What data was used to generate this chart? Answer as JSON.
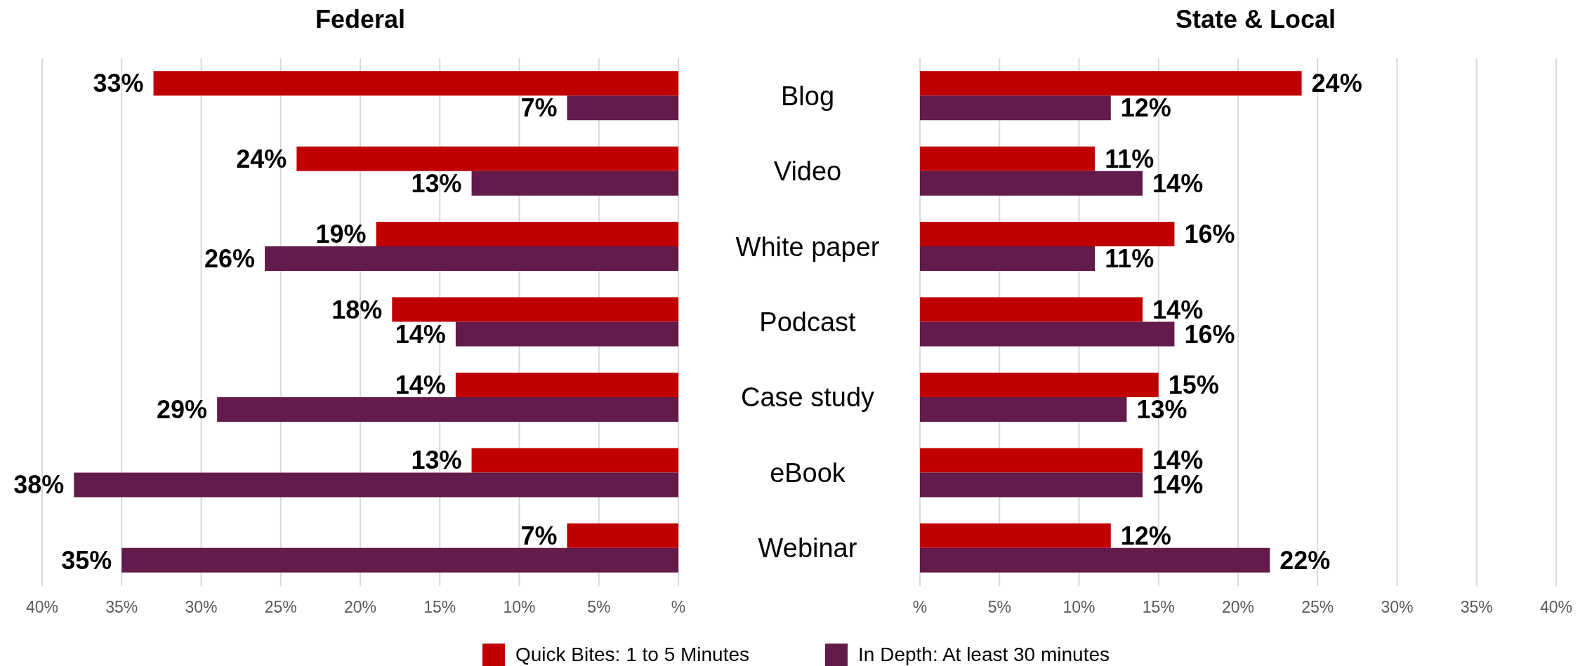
{
  "chart_data": [
    {
      "type": "bar",
      "orientation": "horizontal",
      "title": "Federal",
      "categories": [
        "Blog",
        "Video",
        "White paper",
        "Podcast",
        "Case study",
        "eBook",
        "Webinar"
      ],
      "series": [
        {
          "name": "Quick Bites: 1 to 5 Minutes",
          "color": "#c00000",
          "values": [
            33,
            24,
            19,
            18,
            14,
            13,
            7
          ],
          "value_labels": [
            "33%",
            "24%",
            "19%",
            "18%",
            "14%",
            "13%",
            "7%"
          ]
        },
        {
          "name": "In Depth: At least 30 minutes",
          "color": "#621b4b",
          "values": [
            7,
            13,
            26,
            14,
            29,
            38,
            35
          ],
          "value_labels": [
            "7%",
            "13%",
            "26%",
            "14%",
            "29%",
            "38%",
            "35%"
          ]
        }
      ],
      "xlim": [
        40,
        0
      ],
      "xticks": [
        {
          "value": 40,
          "label": "40%"
        },
        {
          "value": 35,
          "label": "35%"
        },
        {
          "value": 30,
          "label": "30%"
        },
        {
          "value": 25,
          "label": "25%"
        },
        {
          "value": 20,
          "label": "20%"
        },
        {
          "value": 15,
          "label": "15%"
        },
        {
          "value": 10,
          "label": "10%"
        },
        {
          "value": 5,
          "label": "5%"
        },
        {
          "value": 0,
          "label": "%"
        }
      ],
      "grid": "x",
      "legend": "bottom",
      "tick_labels": "x"
    },
    {
      "type": "bar",
      "orientation": "horizontal",
      "title": "State & Local",
      "categories": [
        "Blog",
        "Video",
        "White paper",
        "Podcast",
        "Case study",
        "eBook",
        "Webinar"
      ],
      "series": [
        {
          "color": "#c00000",
          "values": [
            24,
            11,
            16,
            14,
            15,
            14,
            12
          ],
          "value_labels": [
            "24%",
            "11%",
            "16%",
            "14%",
            "15%",
            "14%",
            "12%"
          ]
        },
        {
          "color": "#621b4b",
          "values": [
            12,
            14,
            11,
            16,
            13,
            14,
            22
          ],
          "value_labels": [
            "12%",
            "14%",
            "11%",
            "16%",
            "13%",
            "14%",
            "22%"
          ]
        }
      ],
      "xlim": [
        0,
        40
      ],
      "xticks": [
        {
          "value": 0,
          "label": "%"
        },
        {
          "value": 5,
          "label": "5%"
        },
        {
          "value": 10,
          "label": "10%"
        },
        {
          "value": 15,
          "label": "15%"
        },
        {
          "value": 20,
          "label": "20%"
        },
        {
          "value": 25,
          "label": "25%"
        },
        {
          "value": 30,
          "label": "30%"
        },
        {
          "value": 35,
          "label": "35%"
        },
        {
          "value": 40,
          "label": "40%"
        }
      ],
      "grid": "x"
    }
  ]
}
